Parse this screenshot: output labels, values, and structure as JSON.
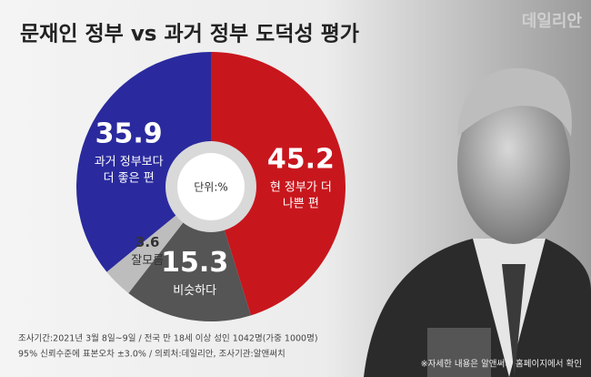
{
  "chart_data": {
    "type": "pie",
    "title": "문재인 정부 vs 과거 정부 도덕성 평가",
    "watermark": "데일리안",
    "center_label": "단위:%",
    "values": [
      45.2,
      15.3,
      3.6,
      35.9
    ],
    "labels": [
      [
        "현 정부가 더",
        "나쁜 편"
      ],
      [
        "비슷하다"
      ],
      [
        "잘모름"
      ],
      [
        "과거 정부보다",
        "더 좋은 편"
      ]
    ],
    "colors": [
      "#c8161d",
      "#555555",
      "#bdbdbd",
      "#2a2a9e"
    ],
    "notes": [
      "조사기간:2021년 3월 8일~9일 / 전국 만 18세 이상 성인 1042명(가중 1000명)",
      "95% 신뢰수준에 표본오차 ±3.0% / 의뢰처:데일리안, 조사기관:알앤써치"
    ],
    "footnote": "※자세한 내용은 알앤써치 홈페이지에서 확인"
  }
}
